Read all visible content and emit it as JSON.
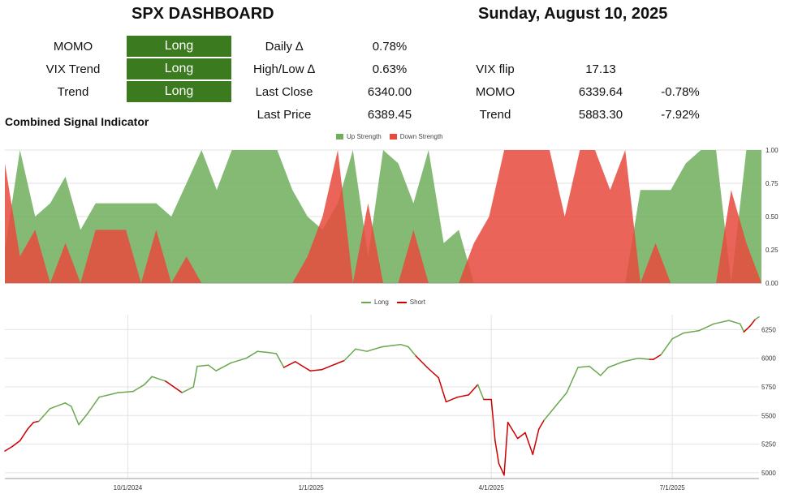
{
  "header": {
    "title": "SPX DASHBOARD",
    "date": "Sunday, August 10, 2025"
  },
  "signals": [
    {
      "label": "MOMO",
      "value": "Long"
    },
    {
      "label": "VIX Trend",
      "value": "Long"
    },
    {
      "label": "Trend",
      "value": "Long"
    }
  ],
  "stats": {
    "daily_delta": {
      "label": "Daily ∆",
      "value": "0.78%"
    },
    "high_low_delta": {
      "label": "High/Low ∆",
      "value": "0.63%"
    },
    "last_close": {
      "label": "Last Close",
      "value": "6340.00"
    },
    "last_price": {
      "label": "Last Price",
      "value": "6389.45"
    }
  },
  "levels": {
    "vix_flip": {
      "label": "VIX flip",
      "value": "17.13"
    },
    "momo": {
      "label": "MOMO",
      "value": "6339.64",
      "pct": "-0.78%"
    },
    "trend": {
      "label": "Trend",
      "value": "5883.30",
      "pct": "-7.92%"
    }
  },
  "section_title": "Combined Signal Indicator",
  "colors": {
    "up": "#6fae5a",
    "down": "#e8493d",
    "long_line": "#6aa84f",
    "short_line": "#cc0000",
    "pill": "#3b7a1e"
  },
  "chart_data": [
    {
      "type": "area",
      "title": "Combined Signal Indicator",
      "legend": [
        "Up Strength",
        "Down Strength"
      ],
      "legend_position": "top-center",
      "ylim": [
        0,
        1
      ],
      "yticks": [
        "0.00",
        "0.25",
        "0.50",
        "0.75",
        "1.00"
      ],
      "x": [
        0,
        2,
        4,
        6,
        8,
        10,
        12,
        14,
        16,
        18,
        20,
        22,
        24,
        26,
        28,
        30,
        32,
        34,
        36,
        38,
        40,
        42,
        44,
        46,
        48,
        50,
        52,
        54,
        56,
        58,
        60,
        62,
        64,
        66,
        68,
        70,
        72,
        74,
        76,
        78,
        80,
        82,
        84,
        86,
        88,
        90,
        92,
        94,
        96,
        98,
        100
      ],
      "series": [
        {
          "name": "Up Strength",
          "values": [
            0.25,
            1.0,
            0.5,
            0.6,
            0.8,
            0.4,
            0.6,
            0.6,
            0.6,
            0.6,
            0.6,
            0.5,
            0.75,
            1.0,
            0.7,
            1.0,
            1.0,
            1.0,
            1.0,
            0.7,
            0.5,
            0.4,
            0.6,
            1.0,
            0.2,
            1.0,
            0.9,
            0.6,
            1.0,
            0.3,
            0.4,
            0.0,
            0.0,
            0.0,
            0.0,
            0.0,
            0.0,
            0.0,
            0.0,
            0.0,
            0.0,
            0.0,
            0.7,
            0.7,
            0.7,
            0.9,
            1.0,
            1.0,
            0.0,
            1.0,
            1.0
          ]
        },
        {
          "name": "Down Strength",
          "values": [
            0.9,
            0.2,
            0.4,
            0.0,
            0.3,
            0.0,
            0.4,
            0.4,
            0.4,
            0.0,
            0.4,
            0.0,
            0.2,
            0.0,
            0.0,
            0.0,
            0.0,
            0.0,
            0.0,
            0.0,
            0.2,
            0.5,
            1.0,
            0.0,
            0.6,
            0.0,
            0.0,
            0.4,
            0.0,
            0.0,
            0.0,
            0.3,
            0.5,
            1.0,
            1.0,
            1.0,
            1.0,
            0.5,
            1.0,
            1.0,
            0.7,
            1.0,
            0.0,
            0.3,
            0.0,
            0.0,
            0.0,
            0.0,
            0.7,
            0.3,
            0.0
          ]
        }
      ]
    },
    {
      "type": "line",
      "legend": [
        "Long",
        "Short"
      ],
      "legend_position": "top-center",
      "ylim": [
        4950,
        6380
      ],
      "yticks": [
        5000,
        5250,
        5500,
        5750,
        6000,
        6250
      ],
      "xticks": [
        {
          "label": "10/1/2024",
          "t": 0.163
        },
        {
          "label": "1/1/2025",
          "t": 0.406
        },
        {
          "label": "4/1/2025",
          "t": 0.645
        },
        {
          "label": "7/1/2025",
          "t": 0.885
        }
      ],
      "points": [
        [
          0,
          5190,
          "S"
        ],
        [
          1,
          5230,
          "S"
        ],
        [
          2,
          5280,
          "S"
        ],
        [
          3,
          5380,
          "S"
        ],
        [
          3.8,
          5440,
          "S"
        ],
        [
          4.5,
          5450,
          "L"
        ],
        [
          6,
          5560,
          "L"
        ],
        [
          8,
          5610,
          "L"
        ],
        [
          8.8,
          5580,
          "L"
        ],
        [
          9.8,
          5420,
          "L"
        ],
        [
          11,
          5520,
          "L"
        ],
        [
          12.5,
          5660,
          "L"
        ],
        [
          15,
          5700,
          "L"
        ],
        [
          17,
          5710,
          "L"
        ],
        [
          18.5,
          5770,
          "L"
        ],
        [
          19.5,
          5840,
          "L"
        ],
        [
          21.3,
          5800,
          "S"
        ],
        [
          23.5,
          5700,
          "L"
        ],
        [
          25,
          5750,
          "L"
        ],
        [
          25.5,
          5930,
          "L"
        ],
        [
          27,
          5940,
          "L"
        ],
        [
          28,
          5890,
          "L"
        ],
        [
          30,
          5960,
          "L"
        ],
        [
          32,
          6000,
          "L"
        ],
        [
          33.5,
          6060,
          "L"
        ],
        [
          35,
          6050,
          "L"
        ],
        [
          36,
          6040,
          "L"
        ],
        [
          37,
          5920,
          "S"
        ],
        [
          38.5,
          5970,
          "S"
        ],
        [
          39.5,
          5930,
          "S"
        ],
        [
          40.5,
          5890,
          "S"
        ],
        [
          42,
          5900,
          "S"
        ],
        [
          45,
          5980,
          "L"
        ],
        [
          46.5,
          6080,
          "L"
        ],
        [
          48,
          6060,
          "L"
        ],
        [
          50,
          6100,
          "L"
        ],
        [
          52.5,
          6120,
          "L"
        ],
        [
          53.5,
          6100,
          "L"
        ],
        [
          54.5,
          6020,
          "S"
        ],
        [
          56,
          5920,
          "S"
        ],
        [
          57.5,
          5830,
          "S"
        ],
        [
          58.5,
          5620,
          "S"
        ],
        [
          60,
          5660,
          "S"
        ],
        [
          61.5,
          5680,
          "S"
        ],
        [
          62.7,
          5770,
          "L"
        ],
        [
          63.5,
          5640,
          "S"
        ],
        [
          64.5,
          5640,
          "S"
        ],
        [
          65,
          5280,
          "S"
        ],
        [
          65.5,
          5080,
          "S"
        ],
        [
          66.2,
          4980,
          "S"
        ],
        [
          66.7,
          5440,
          "S"
        ],
        [
          68,
          5300,
          "S"
        ],
        [
          69,
          5350,
          "S"
        ],
        [
          70,
          5160,
          "S"
        ],
        [
          70.8,
          5380,
          "S"
        ],
        [
          71.5,
          5460,
          "L"
        ],
        [
          73,
          5580,
          "L"
        ],
        [
          74.5,
          5700,
          "L"
        ],
        [
          76,
          5920,
          "L"
        ],
        [
          77.5,
          5930,
          "L"
        ],
        [
          79,
          5850,
          "L"
        ],
        [
          80,
          5920,
          "L"
        ],
        [
          82,
          5970,
          "L"
        ],
        [
          84,
          6000,
          "L"
        ],
        [
          85.5,
          5990,
          "S"
        ],
        [
          86,
          5990,
          "S"
        ],
        [
          87,
          6030,
          "L"
        ],
        [
          88.5,
          6170,
          "L"
        ],
        [
          90,
          6220,
          "L"
        ],
        [
          92,
          6240,
          "L"
        ],
        [
          94,
          6300,
          "L"
        ],
        [
          96,
          6330,
          "L"
        ],
        [
          97.5,
          6300,
          "L"
        ],
        [
          98,
          6230,
          "S"
        ],
        [
          98.8,
          6280,
          "S"
        ],
        [
          99.5,
          6340,
          "L"
        ],
        [
          100,
          6360,
          "L"
        ]
      ]
    }
  ]
}
